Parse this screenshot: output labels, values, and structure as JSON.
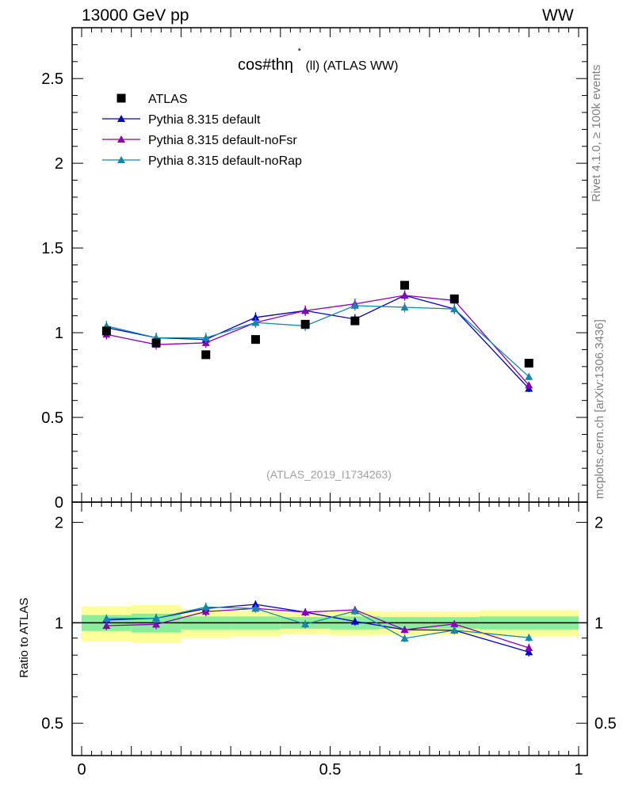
{
  "header": {
    "left": "13000 GeV pp",
    "right": "WW"
  },
  "side_labels": {
    "rivet": "Rivet 4.1.0, ≥ 100k events",
    "mcplots": "mcplots.cern.ch [arXiv:1306.3436]"
  },
  "chart_data": {
    "type": "line",
    "title": "cos#thη* (ll) (ATLAS WW)",
    "title_main": "cos#thη",
    "title_sup": "*",
    "title_sub": "(ll) (ATLAS WW)",
    "watermark": "(ATLAS_2019_I1734263)",
    "xlim": [
      0,
      1
    ],
    "ylim": [
      0,
      2.8
    ],
    "ratio_ylim": [
      0.4,
      2.3
    ],
    "ratio_ylabel": "Ratio to ATLAS",
    "main_yticks": [
      {
        "v": 0,
        "label": "0"
      },
      {
        "v": 0.5,
        "label": "0.5"
      },
      {
        "v": 1,
        "label": "1"
      },
      {
        "v": 1.5,
        "label": "1.5"
      },
      {
        "v": 2,
        "label": "2"
      },
      {
        "v": 2.5,
        "label": "2.5"
      }
    ],
    "ratio_yticks": [
      {
        "v": 0.5,
        "label": "0.5"
      },
      {
        "v": 1,
        "label": "1"
      },
      {
        "v": 2,
        "label": "2"
      }
    ],
    "xticks": [
      {
        "v": 0,
        "label": "0"
      },
      {
        "v": 0.5,
        "label": "0.5"
      },
      {
        "v": 1,
        "label": "1"
      }
    ],
    "bins": [
      {
        "lo": 0.0,
        "hi": 0.1,
        "x": 0.05
      },
      {
        "lo": 0.1,
        "hi": 0.2,
        "x": 0.15
      },
      {
        "lo": 0.2,
        "hi": 0.3,
        "x": 0.25
      },
      {
        "lo": 0.3,
        "hi": 0.4,
        "x": 0.35
      },
      {
        "lo": 0.4,
        "hi": 0.5,
        "x": 0.45
      },
      {
        "lo": 0.5,
        "hi": 0.6,
        "x": 0.55
      },
      {
        "lo": 0.6,
        "hi": 0.7,
        "x": 0.65
      },
      {
        "lo": 0.7,
        "hi": 0.8,
        "x": 0.75
      },
      {
        "lo": 0.8,
        "hi": 1.0,
        "x": 0.9
      }
    ],
    "data": {
      "name": "ATLAS",
      "values": [
        1.01,
        0.94,
        0.87,
        0.96,
        1.05,
        1.07,
        1.28,
        1.2,
        0.82
      ],
      "band_inner": [
        0.055,
        0.065,
        0.045,
        0.045,
        0.04,
        0.045,
        0.04,
        0.04,
        0.045
      ],
      "band_outer": [
        0.12,
        0.13,
        0.1,
        0.09,
        0.075,
        0.085,
        0.08,
        0.08,
        0.09
      ]
    },
    "series": [
      {
        "name": "Pythia 8.315 default",
        "color": "#0000cc",
        "values": [
          1.03,
          0.97,
          0.96,
          1.09,
          1.13,
          1.08,
          1.22,
          1.14,
          0.67
        ],
        "errors": [
          0.03,
          0.03,
          0.03,
          0.03,
          0.03,
          0.03,
          0.03,
          0.03,
          0.02
        ]
      },
      {
        "name": "Pythia 8.315 default-noFsr",
        "color": "#8800bb",
        "values": [
          0.99,
          0.93,
          0.94,
          1.06,
          1.13,
          1.17,
          1.22,
          1.19,
          0.69
        ],
        "errors": [
          0.03,
          0.03,
          0.03,
          0.03,
          0.03,
          0.03,
          0.03,
          0.03,
          0.02
        ]
      },
      {
        "name": "Pythia 8.315 default-noRap",
        "color": "#1188aa",
        "values": [
          1.04,
          0.97,
          0.97,
          1.06,
          1.04,
          1.16,
          1.15,
          1.14,
          0.74
        ],
        "errors": [
          0.03,
          0.03,
          0.03,
          0.03,
          0.03,
          0.03,
          0.03,
          0.03,
          0.02
        ]
      }
    ],
    "legend_position": "top-left"
  }
}
